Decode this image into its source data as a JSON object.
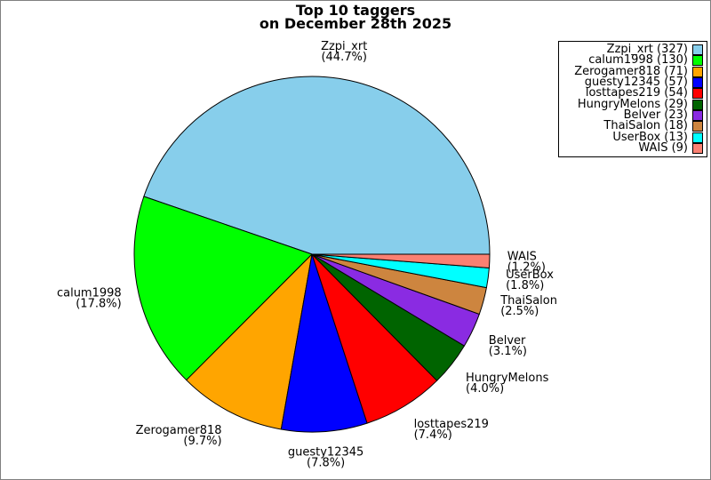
{
  "title": {
    "line1": "Top 10 taggers",
    "line2": "on December 28th 2025"
  },
  "chart_data": {
    "type": "pie",
    "title": "Top 10 taggers on December 28th 2025",
    "series": [
      {
        "label": "Zzpi_xrt",
        "count": 327,
        "pct": "44.7%",
        "color": "#87CEEB"
      },
      {
        "label": "calum1998",
        "count": 130,
        "pct": "17.8%",
        "color": "#00FF00"
      },
      {
        "label": "Zerogamer818",
        "count": 71,
        "pct": "9.7%",
        "color": "#FFA500"
      },
      {
        "label": "guesty12345",
        "count": 57,
        "pct": "7.8%",
        "color": "#0000FF"
      },
      {
        "label": "losttapes219",
        "count": 54,
        "pct": "7.4%",
        "color": "#FF0000"
      },
      {
        "label": "HungryMelons",
        "count": 29,
        "pct": "4.0%",
        "color": "#006400"
      },
      {
        "label": "Belver",
        "count": 23,
        "pct": "3.1%",
        "color": "#8A2BE2"
      },
      {
        "label": "ThaiSalon",
        "count": 18,
        "pct": "2.5%",
        "color": "#CD853F"
      },
      {
        "label": "UserBox",
        "count": 13,
        "pct": "1.8%",
        "color": "#00FFFF"
      },
      {
        "label": "WAIS",
        "count": 9,
        "pct": "1.2%",
        "color": "#FA8072"
      }
    ],
    "start_angle_deg": 0,
    "direction": "counterclockwise",
    "center": [
      350,
      285
    ],
    "radius": 200,
    "label_radius": 220,
    "slice_edge_color": "#000000",
    "legend": {
      "position": "upper right",
      "format": "label (count)"
    }
  }
}
